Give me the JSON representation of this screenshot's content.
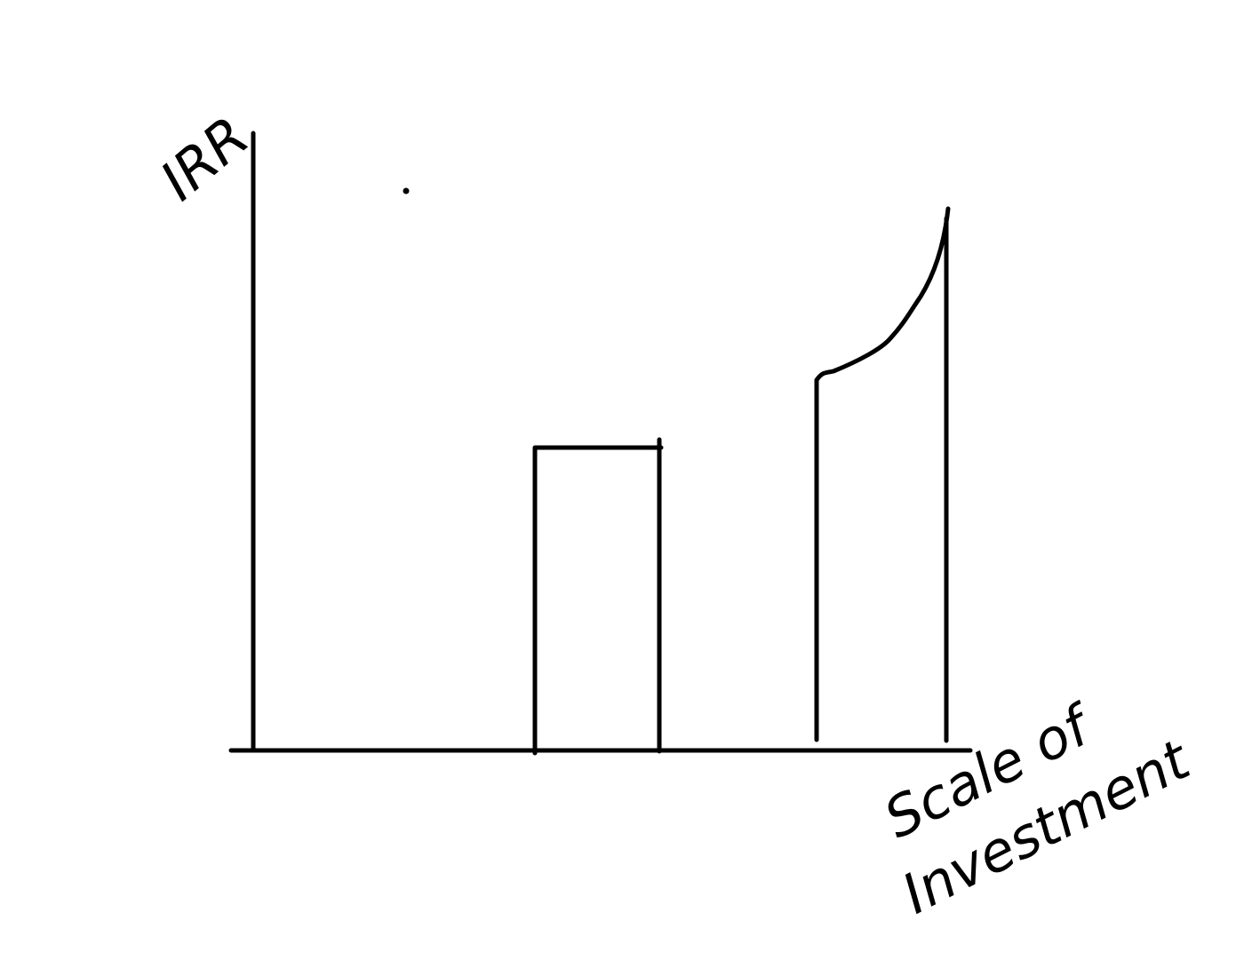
{
  "diagram": {
    "y_axis_label": "IRR",
    "x_axis_label_line1": "Scale of",
    "x_axis_label_line2": "Investment",
    "ink_color": "#000000",
    "background_color": "#ffffff"
  }
}
